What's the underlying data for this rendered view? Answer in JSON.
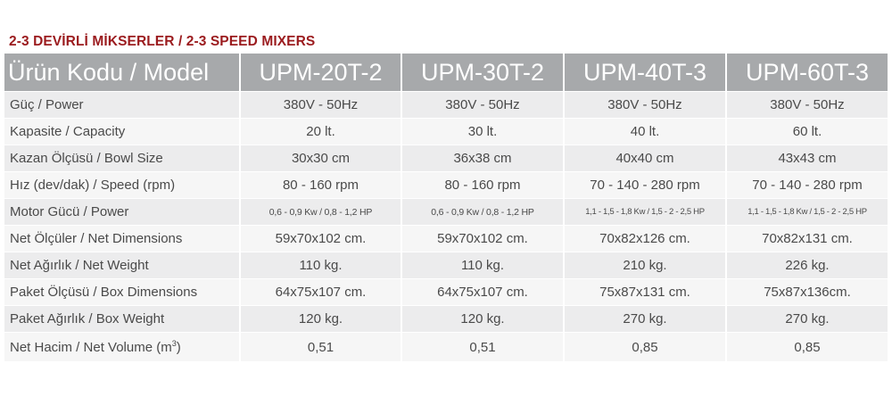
{
  "title": "2-3 DEVİRLİ MİKSERLER / 2-3 SPEED MIXERS",
  "header": {
    "label": "Ürün Kodu / Model",
    "models": [
      "UPM-20T-2",
      "UPM-30T-2",
      "UPM-40T-3",
      "UPM-60T-3"
    ]
  },
  "rows": [
    {
      "label": "Güç / Power",
      "values": [
        "380V - 50Hz",
        "380V - 50Hz",
        "380V - 50Hz",
        "380V - 50Hz"
      ]
    },
    {
      "label": "Kapasite / Capacity",
      "values": [
        "20 lt.",
        "30 lt.",
        "40 lt.",
        "60 lt."
      ]
    },
    {
      "label": "Kazan Ölçüsü / Bowl Size",
      "values": [
        "30x30 cm",
        "36x38 cm",
        "40x40 cm",
        "43x43 cm"
      ]
    },
    {
      "label": "Hız (dev/dak) / Speed (rpm)",
      "values": [
        "80 - 160 rpm",
        "80 - 160 rpm",
        "70 - 140 - 280 rpm",
        "70 - 140 - 280 rpm"
      ]
    },
    {
      "label": "Motor Gücü / Power",
      "values": [
        "0,6 - 0,9 Kw / 0,8 - 1,2 HP",
        "0,6 - 0,9 Kw / 0,8 - 1,2 HP",
        "1,1 - 1,5 - 1,8 Kw / 1,5 - 2 - 2,5 HP",
        "1,1 - 1,5 - 1,8 Kw / 1,5 - 2 - 2,5 HP"
      ]
    },
    {
      "label": "Net Ölçüler / Net Dimensions",
      "values": [
        "59x70x102 cm.",
        "59x70x102 cm.",
        "70x82x126 cm.",
        "70x82x131 cm."
      ]
    },
    {
      "label": "Net Ağırlık / Net Weight",
      "values": [
        "110 kg.",
        "110 kg.",
        "210 kg.",
        "226 kg."
      ]
    },
    {
      "label": "Paket Ölçüsü / Box Dimensions",
      "values": [
        "64x75x107 cm.",
        "64x75x107 cm.",
        "75x87x131 cm.",
        "75x87x136cm."
      ]
    },
    {
      "label": "Paket Ağırlık / Box Weight",
      "values": [
        "120 kg.",
        "120 kg.",
        "270 kg.",
        "270 kg."
      ]
    },
    {
      "label": "Net Hacim / Net Volume (m",
      "label_sup": "3",
      "label_suffix": ")",
      "values": [
        "0,51",
        "0,51",
        "0,85",
        "0,85"
      ]
    }
  ]
}
